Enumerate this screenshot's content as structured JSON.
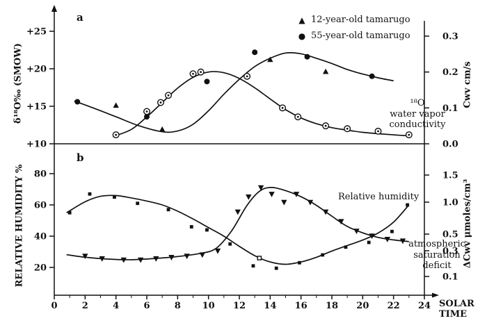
{
  "figure": {
    "panel_a_letter": "a",
    "panel_b_letter": "b",
    "x_axis": {
      "title": "SOLAR TIME",
      "range": [
        0,
        24
      ],
      "tick_labels": [
        "0",
        "2",
        "4",
        "6",
        "8",
        "10",
        "12",
        "14",
        "16",
        "18",
        "20",
        "22",
        "24"
      ],
      "tick_values": [
        0,
        2,
        4,
        6,
        8,
        10,
        12,
        14,
        16,
        18,
        20,
        22,
        24
      ],
      "minor_ticks": [
        1,
        3,
        5,
        7,
        9,
        11,
        13,
        15,
        17,
        19,
        21,
        23
      ]
    },
    "colors": {
      "ink": "#111111",
      "background": "#ffffff"
    }
  },
  "chart_data": [
    {
      "panel": "a",
      "type": "scatter-line",
      "left_axis": {
        "label": "δ¹⁸O‰ (SMOW)",
        "tick_labels": [
          "+10",
          "+15",
          "+20",
          "+25"
        ],
        "tick_values": [
          10,
          15,
          20,
          25
        ],
        "range": [
          10,
          27
        ]
      },
      "right_axis": {
        "label": "Cwv cm/s",
        "tick_labels": [
          "0.0",
          "0.1",
          "0.2",
          "0.3"
        ],
        "tick_values": [
          0,
          0.1,
          0.2,
          0.3
        ],
        "range": [
          0,
          0.3
        ]
      },
      "legend": [
        {
          "marker": "triangle-up",
          "label": "12-year-old tamarugo"
        },
        {
          "marker": "circle",
          "label": "55-year-old tamarugo"
        }
      ],
      "annotation_lines": [
        "¹⁸O",
        "water vapor",
        "conductivity"
      ],
      "series": [
        {
          "name": "delta18O-trend-curve",
          "axis": "left",
          "curve": true,
          "points": [
            [
              1.3,
              15.7
            ],
            [
              2.5,
              14.8
            ],
            [
              4,
              13.6
            ],
            [
              5.5,
              12.4
            ],
            [
              7,
              11.6
            ],
            [
              8,
              11.7
            ],
            [
              9,
              12.6
            ],
            [
              10,
              14.4
            ],
            [
              11,
              16.6
            ],
            [
              12,
              18.6
            ],
            [
              13,
              20.3
            ],
            [
              14,
              21.4
            ],
            [
              15,
              22.1
            ],
            [
              16,
              22.0
            ],
            [
              17,
              21.4
            ],
            [
              18,
              20.7
            ],
            [
              19,
              19.9
            ],
            [
              20,
              19.3
            ],
            [
              21,
              18.8
            ],
            [
              22,
              18.4
            ]
          ]
        },
        {
          "name": "conductivity-trend-curve",
          "axis": "right",
          "curve": true,
          "points": [
            [
              3.8,
              0.02
            ],
            [
              5,
              0.04
            ],
            [
              6,
              0.075
            ],
            [
              7,
              0.115
            ],
            [
              8,
              0.155
            ],
            [
              9,
              0.185
            ],
            [
              10,
              0.2
            ],
            [
              11,
              0.198
            ],
            [
              12,
              0.182
            ],
            [
              13,
              0.156
            ],
            [
              14,
              0.125
            ],
            [
              15,
              0.095
            ],
            [
              16,
              0.072
            ],
            [
              17,
              0.056
            ],
            [
              18,
              0.045
            ],
            [
              19,
              0.038
            ],
            [
              20,
              0.032
            ],
            [
              21,
              0.028
            ],
            [
              22,
              0.025
            ],
            [
              23,
              0.022
            ]
          ]
        },
        {
          "name": "12-year-old tamarugo d18O",
          "axis": "left",
          "marker": "triangle-up",
          "points": [
            [
              4,
              15.1
            ],
            [
              7,
              11.9
            ],
            [
              14,
              21.2
            ],
            [
              17.6,
              19.6
            ]
          ]
        },
        {
          "name": "55-year-old tamarugo d18O",
          "axis": "left",
          "marker": "circle",
          "points": [
            [
              1.5,
              15.6
            ],
            [
              6,
              13.6
            ],
            [
              9.9,
              18.3
            ],
            [
              13,
              22.2
            ],
            [
              16.4,
              21.6
            ],
            [
              20.6,
              19.0
            ]
          ]
        },
        {
          "name": "18O water vapor conductivity",
          "axis": "right",
          "marker": "circle-dot",
          "points": [
            [
              4,
              0.025
            ],
            [
              6,
              0.09
            ],
            [
              6.9,
              0.115
            ],
            [
              7.4,
              0.135
            ],
            [
              9,
              0.195
            ],
            [
              9.5,
              0.2
            ],
            [
              12.5,
              0.188
            ],
            [
              14.8,
              0.1
            ],
            [
              15.8,
              0.075
            ],
            [
              17.6,
              0.05
            ],
            [
              19,
              0.042
            ],
            [
              21,
              0.035
            ],
            [
              23,
              0.025
            ]
          ]
        }
      ]
    },
    {
      "panel": "b",
      "type": "scatter-line",
      "left_axis": {
        "label": "RELATIVE HUMIDITY %",
        "tick_labels": [
          "20",
          "40",
          "60",
          "80"
        ],
        "tick_values": [
          20,
          40,
          60,
          80
        ],
        "range": [
          15,
          88
        ]
      },
      "right_axis": {
        "label": "ΔCwv μmoles/cm³",
        "tick_labels": [
          "0.1",
          "0.3",
          "0.5",
          "1.0",
          "1.5"
        ],
        "tick_values": [
          0.1,
          0.3,
          0.5,
          1.0,
          1.5
        ],
        "range": [
          0.05,
          1.6
        ]
      },
      "annotation_rh": "Relative humidity",
      "annotation_asd_lines": [
        "atmospheric",
        "saturation",
        "deficit"
      ],
      "series": [
        {
          "name": "relative-humidity-curve",
          "axis": "left",
          "curve": true,
          "points": [
            [
              0.8,
              55
            ],
            [
              2,
              62
            ],
            [
              3,
              65.5
            ],
            [
              4,
              66
            ],
            [
              5,
              64.5
            ],
            [
              6,
              62.5
            ],
            [
              7,
              60
            ],
            [
              8,
              56
            ],
            [
              9,
              51
            ],
            [
              10,
              45.5
            ],
            [
              11,
              40
            ],
            [
              12,
              33.5
            ],
            [
              13,
              27.5
            ],
            [
              14,
              23.5
            ],
            [
              15,
              22
            ],
            [
              16,
              23.5
            ],
            [
              17,
              26.5
            ],
            [
              18,
              30.5
            ],
            [
              19,
              34
            ],
            [
              20,
              37.5
            ],
            [
              21,
              42
            ],
            [
              22,
              49
            ],
            [
              23,
              60
            ]
          ]
        },
        {
          "name": "saturation-deficit-curve",
          "axis": "right",
          "curve": true,
          "points": [
            [
              0.8,
              0.27
            ],
            [
              2,
              0.25
            ],
            [
              3.5,
              0.235
            ],
            [
              5,
              0.23
            ],
            [
              6.5,
              0.24
            ],
            [
              8,
              0.255
            ],
            [
              9.5,
              0.28
            ],
            [
              10.5,
              0.33
            ],
            [
              11.5,
              0.55
            ],
            [
              12.5,
              0.95
            ],
            [
              13.3,
              1.2
            ],
            [
              14,
              1.27
            ],
            [
              14.8,
              1.23
            ],
            [
              16,
              1.1
            ],
            [
              17,
              0.95
            ],
            [
              18,
              0.78
            ],
            [
              19,
              0.62
            ],
            [
              20,
              0.52
            ],
            [
              21,
              0.46
            ],
            [
              22,
              0.43
            ],
            [
              23,
              0.41
            ]
          ]
        },
        {
          "name": "relative humidity",
          "axis": "left",
          "marker": "square",
          "points": [
            [
              1,
              55
            ],
            [
              2.3,
              67
            ],
            [
              3.9,
              65
            ],
            [
              5.4,
              61
            ],
            [
              7.4,
              57
            ],
            [
              8.9,
              46
            ],
            [
              9.9,
              44
            ],
            [
              11.4,
              35
            ],
            [
              12.9,
              21
            ],
            [
              14.4,
              19.5
            ],
            [
              15.9,
              23
            ],
            [
              17.4,
              28
            ],
            [
              18.9,
              33
            ],
            [
              20.4,
              36
            ],
            [
              21.9,
              43
            ],
            [
              22.9,
              60
            ]
          ]
        },
        {
          "name": "relative humidity open point",
          "axis": "left",
          "marker": "square-open",
          "points": [
            [
              13.3,
              26
            ]
          ]
        },
        {
          "name": "atmospheric saturation deficit",
          "axis": "right",
          "marker": "triangle-down",
          "points": [
            [
              2,
              0.26
            ],
            [
              3.1,
              0.24
            ],
            [
              4.5,
              0.23
            ],
            [
              5.6,
              0.23
            ],
            [
              6.6,
              0.24
            ],
            [
              7.6,
              0.25
            ],
            [
              8.6,
              0.26
            ],
            [
              9.6,
              0.27
            ],
            [
              10.6,
              0.3
            ],
            [
              11.9,
              0.85
            ],
            [
              12.6,
              1.1
            ],
            [
              13.4,
              1.27
            ],
            [
              14.1,
              1.15
            ],
            [
              14.9,
              1.0
            ],
            [
              15.7,
              1.15
            ],
            [
              16.6,
              1.0
            ],
            [
              17.6,
              0.85
            ],
            [
              18.6,
              0.7
            ],
            [
              19.6,
              0.55
            ],
            [
              20.6,
              0.48
            ],
            [
              21.6,
              0.44
            ],
            [
              22.6,
              0.42
            ]
          ]
        }
      ]
    }
  ]
}
